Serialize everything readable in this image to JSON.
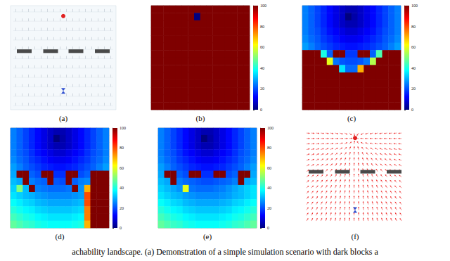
{
  "caption": "achability landscape. (a) Demonstration of a simple simulation scenario with dark blocks a",
  "diagrams": [
    {
      "title": "(a)"
    },
    {
      "title": "(f)"
    }
  ],
  "chart_data": [
    {
      "type": "heatmap",
      "title": "(b)",
      "tick_labels": false,
      "colorbar": {
        "range": [
          0,
          100
        ],
        "ticks": [
          0,
          20,
          40,
          60,
          80,
          100
        ]
      },
      "cells": [
        [
          100,
          100,
          100,
          100,
          100,
          100,
          100,
          100,
          100,
          100,
          100,
          100,
          100,
          100,
          100,
          100
        ],
        [
          100,
          100,
          100,
          100,
          100,
          100,
          100,
          0,
          100,
          100,
          100,
          100,
          100,
          100,
          100,
          100
        ],
        [
          100,
          100,
          100,
          100,
          100,
          100,
          100,
          100,
          100,
          100,
          100,
          100,
          100,
          100,
          100,
          100
        ],
        [
          100,
          100,
          100,
          100,
          100,
          100,
          100,
          100,
          100,
          100,
          100,
          100,
          100,
          100,
          100,
          100
        ],
        [
          100,
          100,
          100,
          100,
          100,
          100,
          100,
          100,
          100,
          100,
          100,
          100,
          100,
          100,
          100,
          100
        ],
        [
          100,
          100,
          100,
          100,
          100,
          100,
          100,
          100,
          100,
          100,
          100,
          100,
          100,
          100,
          100,
          100
        ],
        [
          100,
          100,
          100,
          100,
          100,
          100,
          100,
          100,
          100,
          100,
          100,
          100,
          100,
          100,
          100,
          100
        ],
        [
          100,
          100,
          100,
          100,
          100,
          100,
          100,
          100,
          100,
          100,
          100,
          100,
          100,
          100,
          100,
          100
        ],
        [
          100,
          100,
          100,
          100,
          100,
          100,
          100,
          100,
          100,
          100,
          100,
          100,
          100,
          100,
          100,
          100
        ],
        [
          100,
          100,
          100,
          100,
          100,
          100,
          100,
          100,
          100,
          100,
          100,
          100,
          100,
          100,
          100,
          100
        ],
        [
          100,
          100,
          100,
          100,
          100,
          100,
          100,
          100,
          100,
          100,
          100,
          100,
          100,
          100,
          100,
          100
        ],
        [
          100,
          100,
          100,
          100,
          100,
          100,
          100,
          100,
          100,
          100,
          100,
          100,
          100,
          100,
          100,
          100
        ],
        [
          100,
          100,
          100,
          100,
          100,
          100,
          100,
          100,
          100,
          100,
          100,
          100,
          100,
          100,
          100,
          100
        ],
        [
          100,
          100,
          100,
          100,
          100,
          100,
          100,
          100,
          100,
          100,
          100,
          100,
          100,
          100,
          100,
          100
        ]
      ]
    },
    {
      "type": "heatmap",
      "title": "(c)",
      "tick_labels": false,
      "colorbar": {
        "range": [
          0,
          100
        ],
        "ticks": [
          0,
          20,
          40,
          60,
          80,
          100
        ]
      },
      "cells": [
        [
          25,
          22,
          19,
          16,
          13,
          10,
          7,
          5,
          5,
          7,
          10,
          13,
          16,
          19,
          22,
          25
        ],
        [
          25,
          22,
          19,
          16,
          13,
          10,
          7,
          0,
          4,
          7,
          10,
          13,
          16,
          19,
          22,
          25
        ],
        [
          25,
          22,
          19,
          16,
          13,
          10,
          7,
          5,
          5,
          7,
          10,
          13,
          16,
          19,
          22,
          25
        ],
        [
          25,
          22,
          20,
          17,
          14,
          12,
          10,
          8,
          8,
          10,
          12,
          14,
          17,
          20,
          22,
          25
        ],
        [
          26,
          23,
          21,
          18,
          16,
          14,
          12,
          11,
          11,
          12,
          14,
          16,
          18,
          21,
          23,
          26
        ],
        [
          28,
          25,
          22,
          20,
          18,
          16,
          15,
          14,
          14,
          15,
          16,
          18,
          20,
          22,
          25,
          28
        ],
        [
          100,
          100,
          100,
          40,
          22,
          100,
          100,
          18,
          18,
          100,
          100,
          22,
          45,
          100,
          100,
          100
        ],
        [
          100,
          100,
          100,
          100,
          60,
          24,
          21,
          20,
          20,
          21,
          24,
          55,
          100,
          100,
          100,
          100
        ],
        [
          100,
          100,
          100,
          100,
          100,
          100,
          35,
          23,
          23,
          70,
          100,
          100,
          100,
          100,
          100,
          100
        ],
        [
          100,
          100,
          100,
          100,
          100,
          100,
          100,
          100,
          100,
          100,
          100,
          100,
          100,
          100,
          100,
          100
        ],
        [
          100,
          100,
          100,
          100,
          100,
          100,
          100,
          100,
          100,
          100,
          100,
          100,
          100,
          100,
          100,
          100
        ],
        [
          100,
          100,
          100,
          100,
          100,
          100,
          100,
          100,
          100,
          100,
          100,
          100,
          100,
          100,
          100,
          100
        ],
        [
          100,
          100,
          100,
          100,
          100,
          100,
          100,
          100,
          100,
          100,
          100,
          100,
          100,
          100,
          100,
          100
        ],
        [
          100,
          100,
          100,
          100,
          100,
          100,
          100,
          100,
          100,
          100,
          100,
          100,
          100,
          100,
          100,
          100
        ]
      ]
    },
    {
      "type": "heatmap",
      "title": "(d)",
      "tick_labels": false,
      "colorbar": {
        "range": [
          0,
          100
        ],
        "ticks": [
          0,
          20,
          40,
          60,
          80,
          100
        ]
      },
      "cells": [
        [
          25,
          22,
          19,
          16,
          13,
          10,
          7,
          5,
          5,
          7,
          10,
          13,
          16,
          19,
          22,
          25
        ],
        [
          25,
          22,
          19,
          16,
          13,
          10,
          7,
          0,
          4,
          7,
          10,
          13,
          16,
          19,
          22,
          25
        ],
        [
          25,
          22,
          19,
          16,
          13,
          10,
          7,
          5,
          5,
          7,
          10,
          13,
          16,
          19,
          22,
          25
        ],
        [
          25,
          22,
          20,
          17,
          14,
          12,
          10,
          8,
          8,
          10,
          12,
          14,
          17,
          20,
          22,
          25
        ],
        [
          26,
          23,
          21,
          18,
          16,
          14,
          12,
          11,
          11,
          12,
          14,
          16,
          18,
          21,
          23,
          26
        ],
        [
          28,
          25,
          22,
          20,
          18,
          16,
          15,
          14,
          14,
          15,
          16,
          18,
          20,
          22,
          25,
          28
        ],
        [
          29,
          100,
          100,
          22,
          20,
          100,
          100,
          17,
          17,
          100,
          100,
          20,
          22,
          100,
          100,
          100
        ],
        [
          31,
          29,
          100,
          25,
          23,
          22,
          100,
          21,
          20,
          100,
          22,
          25,
          26,
          100,
          100,
          100
        ],
        [
          33,
          50,
          31,
          100,
          25,
          24,
          23,
          23,
          23,
          24,
          100,
          27,
          70,
          100,
          100,
          100
        ],
        [
          35,
          33,
          31,
          30,
          28,
          27,
          26,
          26,
          26,
          26,
          27,
          28,
          80,
          100,
          100,
          100
        ],
        [
          38,
          36,
          34,
          33,
          31,
          30,
          29,
          29,
          29,
          29,
          30,
          31,
          80,
          100,
          100,
          100
        ],
        [
          41,
          39,
          37,
          36,
          34,
          33,
          32,
          32,
          32,
          32,
          33,
          34,
          75,
          100,
          100,
          100
        ],
        [
          44,
          42,
          40,
          39,
          37,
          36,
          35,
          35,
          35,
          35,
          36,
          37,
          75,
          100,
          100,
          100
        ],
        [
          47,
          45,
          43,
          42,
          40,
          39,
          38,
          38,
          38,
          38,
          39,
          40,
          70,
          100,
          100,
          100
        ]
      ]
    },
    {
      "type": "heatmap",
      "title": "(e)",
      "tick_labels": false,
      "colorbar": {
        "range": [
          0,
          100
        ],
        "ticks": [
          0,
          20,
          40,
          60,
          80,
          100
        ]
      },
      "cells": [
        [
          25,
          22,
          19,
          16,
          13,
          10,
          7,
          5,
          5,
          7,
          10,
          13,
          16,
          19,
          22,
          25
        ],
        [
          25,
          22,
          19,
          16,
          13,
          10,
          7,
          0,
          4,
          7,
          10,
          13,
          16,
          19,
          22,
          25
        ],
        [
          25,
          22,
          19,
          16,
          13,
          10,
          7,
          5,
          5,
          7,
          10,
          13,
          16,
          19,
          22,
          25
        ],
        [
          25,
          22,
          20,
          17,
          14,
          12,
          10,
          8,
          8,
          10,
          12,
          14,
          17,
          20,
          22,
          25
        ],
        [
          26,
          23,
          21,
          18,
          16,
          14,
          12,
          11,
          11,
          12,
          14,
          16,
          18,
          21,
          23,
          26
        ],
        [
          28,
          25,
          22,
          20,
          18,
          16,
          15,
          14,
          14,
          15,
          16,
          18,
          20,
          22,
          25,
          28
        ],
        [
          29,
          100,
          100,
          22,
          20,
          100,
          100,
          17,
          17,
          100,
          100,
          20,
          22,
          100,
          100,
          29
        ],
        [
          31,
          29,
          100,
          25,
          23,
          22,
          21,
          20,
          20,
          21,
          22,
          23,
          25,
          100,
          29,
          31
        ],
        [
          33,
          31,
          29,
          27,
          60,
          24,
          23,
          23,
          23,
          24,
          25,
          27,
          29,
          31,
          33,
          35
        ],
        [
          35,
          33,
          31,
          30,
          28,
          27,
          26,
          26,
          26,
          26,
          27,
          28,
          30,
          31,
          33,
          35
        ],
        [
          38,
          36,
          34,
          33,
          31,
          30,
          29,
          29,
          29,
          29,
          30,
          31,
          33,
          34,
          36,
          38
        ],
        [
          41,
          39,
          37,
          36,
          34,
          33,
          32,
          32,
          32,
          32,
          33,
          34,
          36,
          37,
          39,
          41
        ],
        [
          44,
          42,
          40,
          39,
          37,
          36,
          35,
          35,
          35,
          35,
          36,
          37,
          39,
          40,
          42,
          44
        ],
        [
          47,
          45,
          43,
          42,
          40,
          39,
          38,
          38,
          38,
          38,
          39,
          40,
          42,
          43,
          45,
          47
        ]
      ]
    }
  ]
}
